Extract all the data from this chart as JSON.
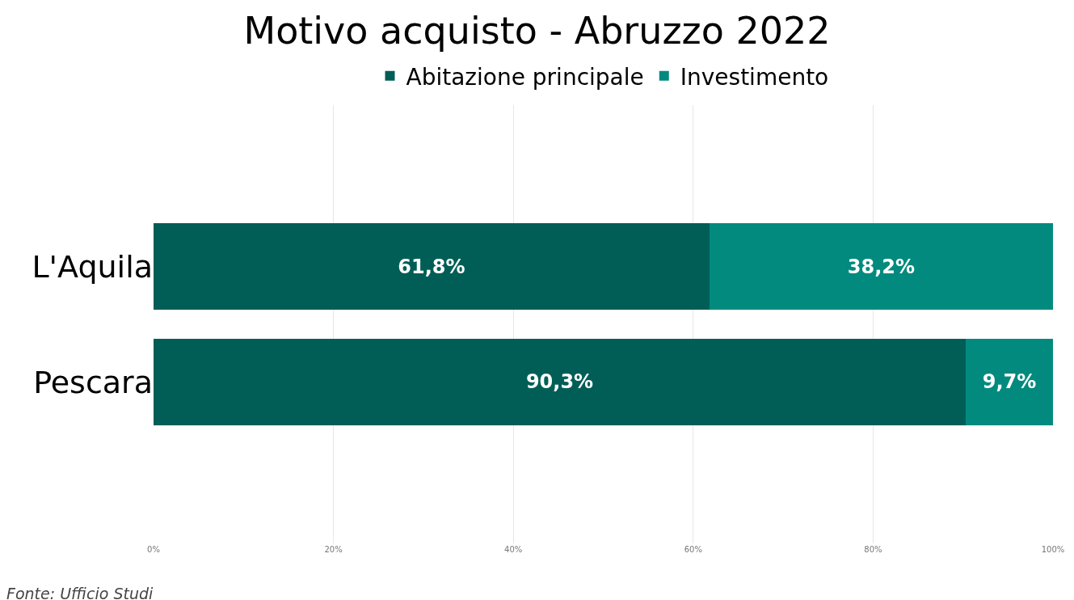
{
  "chart_data": {
    "type": "bar",
    "orientation": "horizontal",
    "stacked": true,
    "title": "Motivo acquisto - Abruzzo 2022",
    "categories": [
      "L'Aquila",
      "Pescara"
    ],
    "series": [
      {
        "name": "Abitazione principale",
        "color": "#005e56",
        "values": [
          61.8,
          90.3
        ],
        "value_labels": [
          "61,8%",
          "90,3%"
        ]
      },
      {
        "name": "Investimento",
        "color": "#038a7f",
        "values": [
          38.2,
          9.7
        ],
        "value_labels": [
          "38,2%",
          "9,7%"
        ]
      }
    ],
    "xlim": [
      0,
      100
    ],
    "xticks": [
      {
        "value": 0,
        "label": "0%"
      },
      {
        "value": 20,
        "label": "20%"
      },
      {
        "value": 40,
        "label": "40%"
      },
      {
        "value": 60,
        "label": "60%"
      },
      {
        "value": 80,
        "label": "80%"
      },
      {
        "value": 100,
        "label": "100%"
      }
    ],
    "grid": "x",
    "legend": "top",
    "annotations": [
      "Fonte: Ufficio Studi"
    ]
  }
}
